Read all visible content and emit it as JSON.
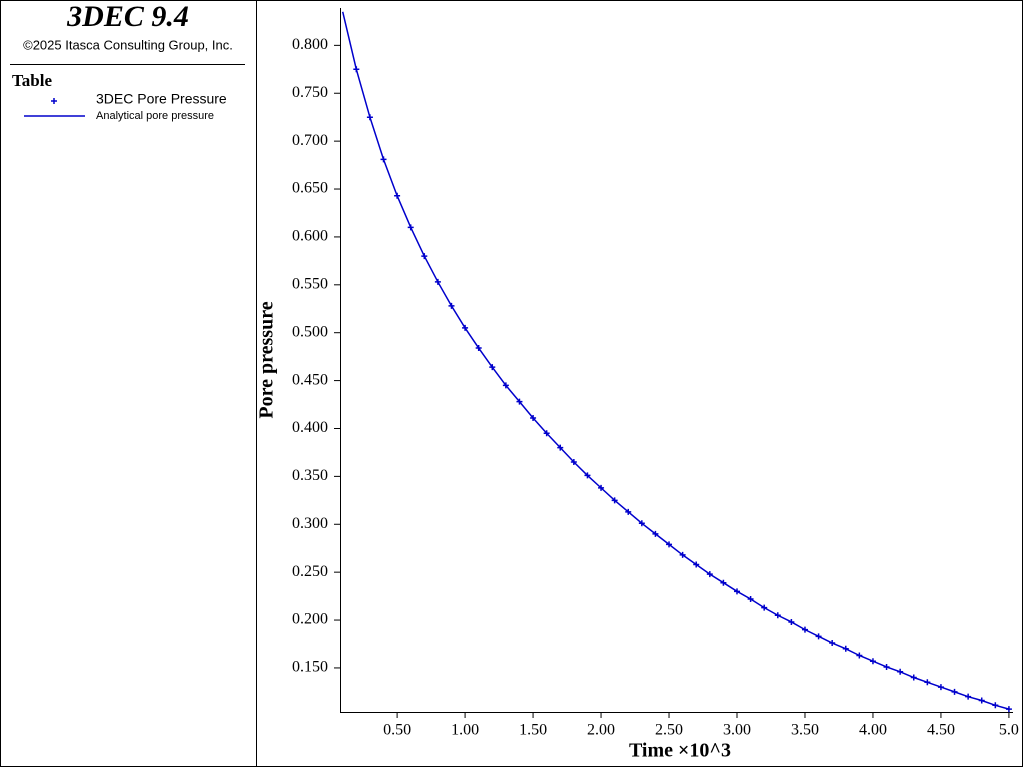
{
  "header": {
    "title": "3DEC 9.4",
    "copyright": "©2025 Itasca Consulting Group, Inc."
  },
  "chart_data": {
    "type": "line",
    "legend_title": "Table",
    "xlabel": "Time ×10^3",
    "ylabel": "Pore pressure",
    "x": [
      0.1,
      0.2,
      0.3,
      0.4,
      0.5,
      0.6,
      0.7,
      0.8,
      0.9,
      1.0,
      1.1,
      1.2,
      1.3,
      1.4,
      1.5,
      1.6,
      1.7,
      1.8,
      1.9,
      2.0,
      2.1,
      2.2,
      2.3,
      2.4,
      2.5,
      2.6,
      2.7,
      2.8,
      2.9,
      3.0,
      3.1,
      3.2,
      3.3,
      3.4,
      3.5,
      3.6,
      3.7,
      3.8,
      3.9,
      4.0,
      4.1,
      4.2,
      4.3,
      4.4,
      4.5,
      4.6,
      4.7,
      4.8,
      4.9,
      5.0
    ],
    "series": [
      {
        "name": "3DEC Pore Pressure",
        "color": "#0000cc",
        "style": "markers",
        "values": [
          null,
          0.775,
          0.725,
          0.681,
          0.643,
          0.61,
          0.58,
          0.553,
          0.528,
          0.505,
          0.484,
          0.464,
          0.445,
          0.428,
          0.411,
          0.395,
          0.38,
          0.365,
          0.351,
          0.338,
          0.325,
          0.313,
          0.301,
          0.29,
          0.279,
          0.268,
          0.258,
          0.248,
          0.239,
          0.23,
          0.222,
          0.213,
          0.205,
          0.198,
          0.19,
          0.183,
          0.176,
          0.17,
          0.163,
          0.157,
          0.151,
          0.146,
          0.14,
          0.135,
          0.13,
          0.125,
          0.12,
          0.116,
          0.111,
          0.107
        ]
      },
      {
        "name": "Analytical pore pressure",
        "color": "#0000cc",
        "style": "line",
        "values": [
          0.835,
          0.775,
          0.725,
          0.681,
          0.643,
          0.61,
          0.58,
          0.553,
          0.528,
          0.505,
          0.484,
          0.464,
          0.445,
          0.428,
          0.411,
          0.395,
          0.38,
          0.365,
          0.351,
          0.338,
          0.325,
          0.313,
          0.301,
          0.29,
          0.279,
          0.268,
          0.258,
          0.248,
          0.239,
          0.23,
          0.222,
          0.213,
          0.205,
          0.198,
          0.19,
          0.183,
          0.176,
          0.17,
          0.163,
          0.157,
          0.151,
          0.146,
          0.14,
          0.135,
          0.13,
          0.125,
          0.12,
          0.116,
          0.111,
          0.107
        ]
      }
    ],
    "xlim": [
      0.08,
      5.03
    ],
    "ylim": [
      0.104,
      0.839
    ],
    "xticks": [
      {
        "value": 0.5,
        "label": "0.50"
      },
      {
        "value": 1.0,
        "label": "1.00"
      },
      {
        "value": 1.5,
        "label": "1.50"
      },
      {
        "value": 2.0,
        "label": "2.00"
      },
      {
        "value": 2.5,
        "label": "2.50"
      },
      {
        "value": 3.0,
        "label": "3.00"
      },
      {
        "value": 3.5,
        "label": "3.50"
      },
      {
        "value": 4.0,
        "label": "4.00"
      },
      {
        "value": 4.5,
        "label": "4.50"
      },
      {
        "value": 5.0,
        "label": "5.0"
      }
    ],
    "yticks": [
      {
        "value": 0.15,
        "label": "0.150"
      },
      {
        "value": 0.2,
        "label": "0.200"
      },
      {
        "value": 0.25,
        "label": "0.250"
      },
      {
        "value": 0.3,
        "label": "0.300"
      },
      {
        "value": 0.35,
        "label": "0.350"
      },
      {
        "value": 0.4,
        "label": "0.400"
      },
      {
        "value": 0.45,
        "label": "0.450"
      },
      {
        "value": 0.5,
        "label": "0.500"
      },
      {
        "value": 0.55,
        "label": "0.550"
      },
      {
        "value": 0.6,
        "label": "0.600"
      },
      {
        "value": 0.65,
        "label": "0.650"
      },
      {
        "value": 0.7,
        "label": "0.700"
      },
      {
        "value": 0.75,
        "label": "0.750"
      },
      {
        "value": 0.8,
        "label": "0.800"
      }
    ]
  }
}
